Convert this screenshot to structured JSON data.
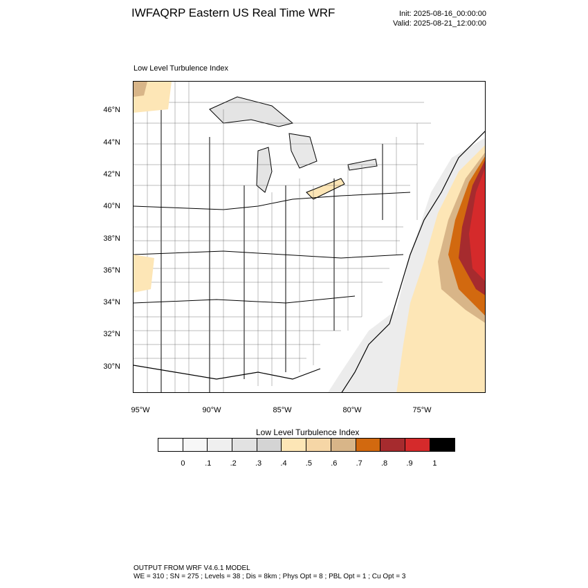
{
  "header": {
    "title": "IWFAQRP Eastern US Real Time WRF",
    "init": "Init: 2025-08-16_00:00:00",
    "valid": "Valid: 2025-08-21_12:00:00"
  },
  "plot": {
    "label": "Low Level Turbulence Index",
    "lat_labels": [
      "46°N",
      "44°N",
      "42°N",
      "40°N",
      "38°N",
      "36°N",
      "34°N",
      "32°N",
      "30°N"
    ],
    "lon_labels": [
      "95°W",
      "90°W",
      "85°W",
      "80°W",
      "75°W"
    ]
  },
  "colorbar": {
    "title": "Low Level Turbulence Index",
    "colors": [
      "#ffffff",
      "#f7f7f7",
      "#efefef",
      "#e2e2e2",
      "#d4d4d4",
      "#fde6b6",
      "#f6d6a6",
      "#d8b588",
      "#d2690f",
      "#a62b2e",
      "#d52a2b",
      "#000000"
    ],
    "ticks": [
      "0",
      ".1",
      ".2",
      ".3",
      ".4",
      ".5",
      ".6",
      ".7",
      ".8",
      ".9",
      "1"
    ]
  },
  "footer": {
    "line1": "OUTPUT FROM WRF V4.6.1 MODEL",
    "line2": "WE = 310 ; SN = 275 ; Levels = 38 ; Dis = 8km ; Phys Opt = 8 ; PBL Opt = 1 ; Cu Opt = 3"
  }
}
